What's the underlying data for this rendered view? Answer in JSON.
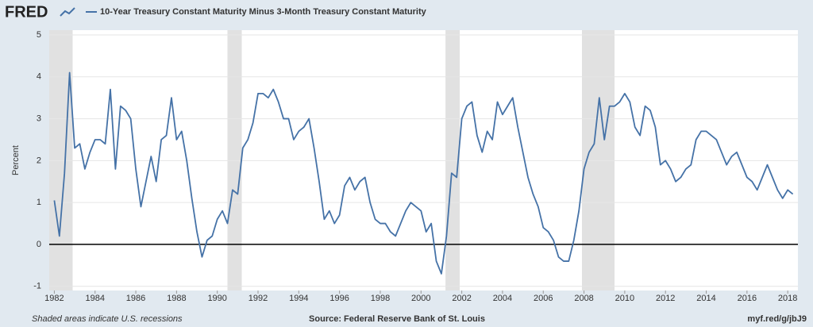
{
  "brand": "FRED",
  "chart_data": {
    "type": "line",
    "y_label": "Percent",
    "series": [
      {
        "name": "10-Year Treasury Constant Maturity Minus 3-Month Treasury Constant Maturity",
        "color": "#4572a7",
        "values": [
          1.05,
          0.2,
          1.7,
          4.1,
          2.3,
          2.4,
          1.8,
          2.2,
          2.5,
          2.5,
          2.4,
          3.7,
          1.8,
          3.3,
          3.2,
          3.0,
          1.8,
          0.9,
          1.5,
          2.1,
          1.5,
          2.5,
          2.6,
          3.5,
          2.5,
          2.7,
          2.0,
          1.1,
          0.3,
          -0.3,
          0.1,
          0.2,
          0.6,
          0.8,
          0.5,
          1.3,
          1.2,
          2.3,
          2.5,
          2.9,
          3.6,
          3.6,
          3.5,
          3.7,
          3.4,
          3.0,
          3.0,
          2.5,
          2.7,
          2.8,
          3.0,
          2.3,
          1.5,
          0.6,
          0.8,
          0.5,
          0.7,
          1.4,
          1.6,
          1.3,
          1.5,
          1.6,
          1.0,
          0.6,
          0.5,
          0.5,
          0.3,
          0.2,
          0.5,
          0.8,
          1.0,
          0.9,
          0.8,
          0.3,
          0.5,
          -0.4,
          -0.7,
          0.2,
          1.7,
          1.6,
          3.0,
          3.3,
          3.4,
          2.6,
          2.2,
          2.7,
          2.5,
          3.4,
          3.1,
          3.3,
          3.5,
          2.8,
          2.2,
          1.6,
          1.2,
          0.9,
          0.4,
          0.3,
          0.1,
          -0.3,
          -0.4,
          -0.4,
          0.1,
          0.8,
          1.8,
          2.2,
          2.4,
          3.5,
          2.5,
          3.3,
          3.3,
          3.4,
          3.6,
          3.4,
          2.8,
          2.6,
          3.3,
          3.2,
          2.8,
          1.9,
          2.0,
          1.8,
          1.5,
          1.6,
          1.8,
          1.9,
          2.5,
          2.7,
          2.7,
          2.6,
          2.5,
          2.2,
          1.9,
          2.1,
          2.2,
          1.9,
          1.6,
          1.5,
          1.3,
          1.6,
          1.9,
          1.6,
          1.3,
          1.1,
          1.3,
          1.2
        ]
      }
    ],
    "x": [
      1982,
      1982.25,
      1982.5,
      1982.75,
      1983,
      1983.25,
      1983.5,
      1983.75,
      1984,
      1984.25,
      1984.5,
      1984.75,
      1985,
      1985.25,
      1985.5,
      1985.75,
      1986,
      1986.25,
      1986.5,
      1986.75,
      1987,
      1987.25,
      1987.5,
      1987.75,
      1988,
      1988.25,
      1988.5,
      1988.75,
      1989,
      1989.25,
      1989.5,
      1989.75,
      1990,
      1990.25,
      1990.5,
      1990.75,
      1991,
      1991.25,
      1991.5,
      1991.75,
      1992,
      1992.25,
      1992.5,
      1992.75,
      1993,
      1993.25,
      1993.5,
      1993.75,
      1994,
      1994.25,
      1994.5,
      1994.75,
      1995,
      1995.25,
      1995.5,
      1995.75,
      1996,
      1996.25,
      1996.5,
      1996.75,
      1997,
      1997.25,
      1997.5,
      1997.75,
      1998,
      1998.25,
      1998.5,
      1998.75,
      1999,
      1999.25,
      1999.5,
      1999.75,
      2000,
      2000.25,
      2000.5,
      2000.75,
      2001,
      2001.25,
      2001.5,
      2001.75,
      2002,
      2002.25,
      2002.5,
      2002.75,
      2003,
      2003.25,
      2003.5,
      2003.75,
      2004,
      2004.25,
      2004.5,
      2004.75,
      2005,
      2005.25,
      2005.5,
      2005.75,
      2006,
      2006.25,
      2006.5,
      2006.75,
      2007,
      2007.25,
      2007.5,
      2007.75,
      2008,
      2008.25,
      2008.5,
      2008.75,
      2009,
      2009.25,
      2009.5,
      2009.75,
      2010,
      2010.25,
      2010.5,
      2010.75,
      2011,
      2011.25,
      2011.5,
      2011.75,
      2012,
      2012.25,
      2012.5,
      2012.75,
      2013,
      2013.25,
      2013.5,
      2013.75,
      2014,
      2014.25,
      2014.5,
      2014.75,
      2015,
      2015.25,
      2015.5,
      2015.75,
      2016,
      2016.25,
      2016.5,
      2016.75,
      2017,
      2017.25,
      2017.5,
      2017.75,
      2018,
      2018.25
    ],
    "recessions": [
      [
        1981.5,
        1982.9
      ],
      [
        1990.5,
        1991.2
      ],
      [
        2001.2,
        2001.9
      ],
      [
        2007.9,
        2009.5
      ]
    ],
    "recession_color": "#e1e1e1",
    "xlim": [
      1981.75,
      2018.5
    ],
    "ylim": [
      -1.1,
      5
    ],
    "xticks": [
      1982,
      1984,
      1986,
      1988,
      1990,
      1992,
      1994,
      1996,
      1998,
      2000,
      2002,
      2004,
      2006,
      2008,
      2010,
      2012,
      2014,
      2016,
      2018
    ],
    "yticks": [
      -1,
      0,
      1,
      2,
      3,
      4,
      5
    ],
    "grid": true,
    "zero_line": true
  },
  "footer": {
    "note": "Shaded areas indicate U.S. recessions",
    "source": "Source: Federal Reserve Bank of St. Louis",
    "link": "myf.red/g/jbJ9"
  }
}
